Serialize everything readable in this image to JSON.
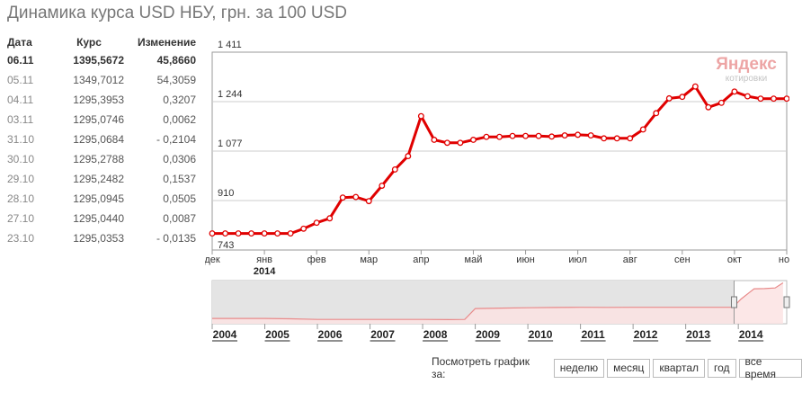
{
  "title": "Динамика курса USD НБУ, грн. за 100 USD",
  "table": {
    "headers": {
      "date": "Дата",
      "rate": "Курс",
      "change": "Изменение"
    },
    "rows": [
      {
        "date": "06.11",
        "rate": "1395,5672",
        "change": "45,8660"
      },
      {
        "date": "05.11",
        "rate": "1349,7012",
        "change": "54,3059"
      },
      {
        "date": "04.11",
        "rate": "1295,3953",
        "change": "0,3207"
      },
      {
        "date": "03.11",
        "rate": "1295,0746",
        "change": "0,0062"
      },
      {
        "date": "31.10",
        "rate": "1295,0684",
        "change": "- 0,2104"
      },
      {
        "date": "30.10",
        "rate": "1295,2788",
        "change": "0,0306"
      },
      {
        "date": "29.10",
        "rate": "1295,2482",
        "change": "0,1537"
      },
      {
        "date": "28.10",
        "rate": "1295,0945",
        "change": "0,0505"
      },
      {
        "date": "27.10",
        "rate": "1295,0440",
        "change": "0,0087"
      },
      {
        "date": "23.10",
        "rate": "1295,0353",
        "change": "- 0,0135"
      }
    ]
  },
  "watermark": {
    "logo": "Яндекс",
    "sub": "котировки"
  },
  "chart_data": [
    {
      "type": "line",
      "title": "",
      "xlabel": "",
      "ylabel": "",
      "ylim": [
        743,
        1411
      ],
      "yticks": [
        "743",
        "910",
        "1 077",
        "1 244",
        "1 411"
      ],
      "yticks_values": [
        743,
        910,
        1077,
        1244,
        1411
      ],
      "xticks": [
        "дек",
        "янв",
        "фев",
        "мар",
        "апр",
        "май",
        "июн",
        "июл",
        "авг",
        "сен",
        "окт",
        "ноя"
      ],
      "x_year_label": "2014",
      "line_color": "#e00000",
      "grid": true,
      "x": [
        0,
        0.25,
        0.5,
        0.75,
        1.0,
        1.25,
        1.5,
        1.75,
        2.0,
        2.25,
        2.5,
        2.75,
        3.0,
        3.25,
        3.5,
        3.75,
        4.0,
        4.25,
        4.5,
        4.75,
        5.0,
        5.25,
        5.5,
        5.75,
        6.0,
        6.25,
        6.5,
        6.75,
        7.0,
        7.25,
        7.5,
        7.75,
        8.0,
        8.25,
        8.5,
        8.75,
        9.0,
        9.25,
        9.5,
        9.75,
        10.0,
        10.25,
        10.5,
        10.75,
        11.0,
        11.25
      ],
      "values": [
        799,
        799,
        799,
        799,
        799,
        799,
        799,
        815,
        835,
        850,
        920,
        922,
        908,
        960,
        1015,
        1060,
        1195,
        1115,
        1105,
        1105,
        1115,
        1125,
        1125,
        1128,
        1128,
        1128,
        1126,
        1130,
        1132,
        1130,
        1120,
        1120,
        1120,
        1150,
        1205,
        1255,
        1260,
        1295,
        1225,
        1240,
        1278,
        1262,
        1254,
        1254,
        1254,
        1254
      ]
    },
    {
      "type": "area",
      "title": "",
      "categories": [
        "2004",
        "2005",
        "2006",
        "2007",
        "2008",
        "2009",
        "2010",
        "2011",
        "2012",
        "2013",
        "2014"
      ],
      "x": [
        2004,
        2004.5,
        2005,
        2005.5,
        2006,
        2006.5,
        2007,
        2007.5,
        2008,
        2008.5,
        2008.8,
        2009,
        2009.5,
        2010,
        2010.5,
        2011,
        2011.5,
        2012,
        2012.5,
        2013,
        2013.5,
        2013.9,
        2014.05,
        2014.2,
        2014.3,
        2014.5,
        2014.7,
        2014.85
      ],
      "values": [
        530,
        530,
        530,
        520,
        505,
        505,
        505,
        505,
        505,
        500,
        505,
        770,
        780,
        790,
        795,
        800,
        798,
        800,
        800,
        800,
        800,
        800,
        1000,
        1150,
        1250,
        1255,
        1270,
        1395
      ],
      "ylim": [
        400,
        1450
      ],
      "xlim": [
        2004,
        2014.92
      ],
      "selection": [
        2013.92,
        2014.92
      ],
      "line_color": "#e88a8a",
      "fill_color": "#fbe3e3"
    }
  ],
  "period_selector": {
    "label": "Посмотреть график за:",
    "buttons": [
      "неделю",
      "месяц",
      "квартал",
      "год",
      "все время"
    ]
  }
}
